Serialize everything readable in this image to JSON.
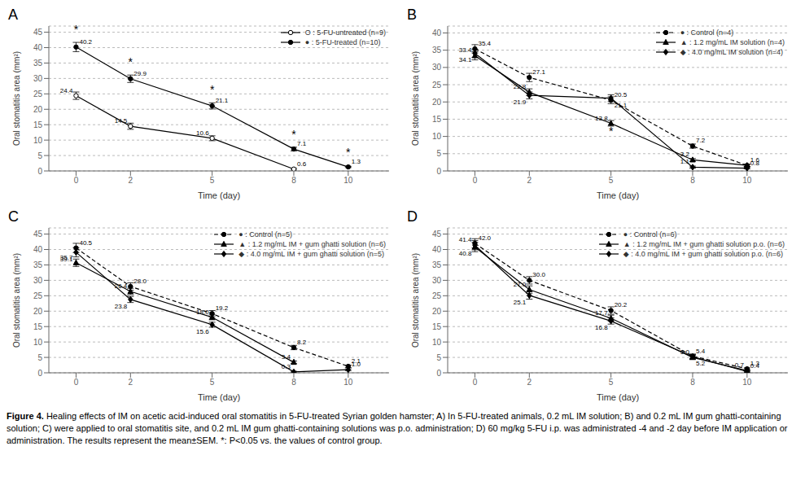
{
  "chart_data": [
    {
      "type": "line",
      "title": "A",
      "xlabel": "Time (day)",
      "ylabel": "Oral stomatitis area (mm²)",
      "x": [
        0,
        2,
        5,
        8,
        10
      ],
      "xlim": [
        -1.0,
        11.5
      ],
      "xticks": [
        0,
        2,
        5,
        8,
        10
      ],
      "ylim": [
        0,
        47
      ],
      "yticks": [
        0,
        5,
        10,
        15,
        20,
        25,
        30,
        35,
        40,
        45
      ],
      "grid": true,
      "legend": "upper right",
      "data_labels": true,
      "series": [
        {
          "name": "O : 5-FU-untreated (n=9)",
          "color": "black",
          "marker": "circle_open",
          "line_style": "solid",
          "values": [
            24.4,
            14.5,
            10.6,
            0.6,
            null
          ],
          "errors": [
            1.2,
            1.0,
            0.8,
            0.3,
            null
          ],
          "value_labels": [
            "24.4",
            "14.5",
            "10.6",
            "0.6",
            null
          ]
        },
        {
          "name": "● : 5-FU-treated (n=10)",
          "color": "black",
          "marker": "circle",
          "line_style": "solid",
          "values": [
            40.2,
            29.9,
            21.1,
            7.1,
            1.3
          ],
          "errors": [
            1.5,
            1.2,
            1.0,
            0.6,
            0.2
          ],
          "value_labels": [
            "40.2",
            "29.9",
            "21.1",
            "7.1",
            "1.3"
          ]
        }
      ],
      "annotations": [
        {
          "x": 0,
          "y": 44.5,
          "text": "*"
        },
        {
          "x": 2,
          "y": 34.0,
          "text": "*"
        },
        {
          "x": 5,
          "y": 25.0,
          "text": "*"
        },
        {
          "x": 8,
          "y": 10.5,
          "text": "*"
        },
        {
          "x": 10,
          "y": 4.8,
          "text": "*"
        }
      ]
    },
    {
      "type": "line",
      "title": "B",
      "xlabel": "Time (day)",
      "ylabel": "Oral stomatitis area (mm²)",
      "x": [
        0,
        2,
        5,
        8,
        10
      ],
      "xlim": [
        -1.0,
        11.5
      ],
      "xticks": [
        0,
        2,
        5,
        8,
        10
      ],
      "ylim": [
        0,
        42
      ],
      "yticks": [
        0,
        5,
        10,
        15,
        20,
        25,
        30,
        35,
        40
      ],
      "grid": true,
      "legend": "upper right",
      "data_labels": true,
      "series": [
        {
          "name": "● : Control (n=4)",
          "color": "black",
          "marker": "circle",
          "line_style": "dashed",
          "values": [
            35.4,
            27.1,
            20.5,
            7.2,
            1.6
          ],
          "errors": [
            1.2,
            1.2,
            1.0,
            0.6,
            0.3
          ],
          "value_labels": [
            "35.4",
            "27.1",
            "20.5",
            "7.2",
            "1.6"
          ]
        },
        {
          "name": "▲ : 1.2 mg/mL IM solution (n=4)",
          "color": "black",
          "marker": "triangle",
          "line_style": "solid",
          "values": [
            33.4,
            22.8,
            13.8,
            3.2,
            1.6
          ],
          "errors": [
            1.2,
            1.0,
            0.8,
            0.4,
            0.3
          ],
          "value_labels": [
            "33.4",
            "22.8",
            "13.8",
            "3.2",
            null
          ]
        },
        {
          "name": "◆ : 4.0 mg/mL IM solution (n=4)",
          "color": "black",
          "marker": "diamond",
          "line_style": "solid",
          "values": [
            34.1,
            21.9,
            21.1,
            1.1,
            0.8
          ],
          "errors": [
            1.2,
            1.0,
            1.0,
            0.3,
            0.2
          ],
          "value_labels": [
            "34.1",
            "21.9",
            "21.1",
            "1.1",
            "0.8"
          ]
        }
      ],
      "annotations": [
        {
          "x": 5,
          "y": 10.5,
          "text": "*"
        }
      ]
    },
    {
      "type": "line",
      "title": "C",
      "xlabel": "Time (day)",
      "ylabel": "Oral stomatitis area (mm²)",
      "x": [
        0,
        2,
        5,
        8,
        10
      ],
      "xlim": [
        -1.0,
        11.5
      ],
      "xticks": [
        0,
        2,
        5,
        8,
        10
      ],
      "ylim": [
        0,
        47
      ],
      "yticks": [
        0,
        5,
        10,
        15,
        20,
        25,
        30,
        35,
        40,
        45
      ],
      "grid": true,
      "legend": "upper right",
      "data_labels": true,
      "series": [
        {
          "name": "● : Control (n=5)",
          "color": "black",
          "marker": "circle",
          "line_style": "dashed",
          "values": [
            40.5,
            28.0,
            19.2,
            8.2,
            2.1
          ],
          "errors": [
            1.5,
            1.2,
            1.0,
            0.7,
            0.4
          ],
          "value_labels": [
            "40.5",
            "28.0",
            "19.2",
            "8.2",
            "2.1"
          ]
        },
        {
          "name": "▲ : 1.2 mg/mL IM + gum ghatti solution (n=6)",
          "color": "black",
          "marker": "triangle",
          "line_style": "solid",
          "values": [
            35.7,
            26.4,
            18.0,
            3.4,
            null
          ],
          "errors": [
            1.2,
            1.0,
            0.8,
            0.4,
            null
          ],
          "value_labels": [
            "35.7",
            "26.4",
            "18.0",
            "3.4",
            null
          ]
        },
        {
          "name": "◆ : 4.0 mg/mL IM + gum ghatti solution (n=5)",
          "color": "black",
          "marker": "diamond",
          "line_style": "solid",
          "values": [
            39.1,
            23.8,
            15.6,
            0.3,
            1.0
          ],
          "errors": [
            1.5,
            1.0,
            0.8,
            0.2,
            0.3
          ],
          "value_labels": [
            "39.1",
            "23.8",
            "15.6",
            "0.3",
            "1.0"
          ]
        }
      ],
      "annotations": [
        {
          "x": 8,
          "y": 1.8,
          "text": "*"
        }
      ]
    },
    {
      "type": "line",
      "title": "D",
      "xlabel": "Time (day)",
      "ylabel": "Oral stomatitis area (mm²)",
      "x": [
        0,
        2,
        5,
        8,
        10
      ],
      "xlim": [
        -1.0,
        11.5
      ],
      "xticks": [
        0,
        2,
        5,
        8,
        10
      ],
      "ylim": [
        0,
        47
      ],
      "yticks": [
        0,
        5,
        10,
        15,
        20,
        25,
        30,
        35,
        40,
        45
      ],
      "grid": true,
      "legend": "upper right",
      "data_labels": true,
      "series": [
        {
          "name": "● : Control (n=6)",
          "color": "black",
          "marker": "circle",
          "line_style": "dashed",
          "values": [
            42.0,
            30.0,
            20.2,
            5.4,
            1.3
          ],
          "errors": [
            1.5,
            1.2,
            1.2,
            0.7,
            0.3
          ],
          "value_labels": [
            "42.0",
            "30.0",
            "20.2",
            "5.4",
            "1.3"
          ]
        },
        {
          "name": "▲ : 1.2 mg/mL IM + gum ghatti solution p.o. (n=6)",
          "color": "black",
          "marker": "triangle",
          "line_style": "solid",
          "values": [
            40.8,
            27.0,
            17.7,
            5.0,
            0.7
          ],
          "errors": [
            1.5,
            1.2,
            1.0,
            0.7,
            0.2
          ],
          "value_labels": [
            "40.8",
            "27.0",
            "17.7",
            "5.0",
            "0.7"
          ]
        },
        {
          "name": "◆ : 4.0 mg/mL IM + gum ghatti solution p.o. (n=6)",
          "color": "black",
          "marker": "diamond",
          "line_style": "solid",
          "values": [
            41.4,
            25.1,
            16.8,
            5.2,
            0.4
          ],
          "errors": [
            1.5,
            1.2,
            1.0,
            0.7,
            0.2
          ],
          "value_labels": [
            "41.4",
            "25.1",
            "16.8",
            "5.2",
            "0.4"
          ]
        }
      ]
    }
  ],
  "caption": [
    "Figure 4.",
    " Healing effects of IM on acetic acid-induced oral stomatitis in 5-FU-treated Syrian golden hamster; A) In 5-FU-treated animals, 0.2 mL IM solution; B) and 0.2 mL IM gum ghatti-containing solution; C) were applied to oral stomatitis site, and 0.2 mL IM gum ghatti-containing solutions was p.o. administration; D) 60 mg/kg 5-FU i.p. was administrated -4 and -2 day before IM application or administration. The results represent the mean±SEM. *: P<0.05 vs. the values of control group."
  ]
}
